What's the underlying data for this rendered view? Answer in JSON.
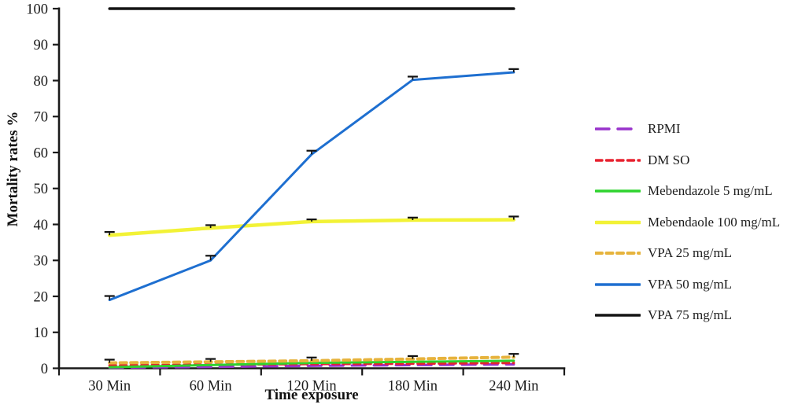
{
  "chart_data": {
    "type": "line",
    "title": "",
    "xlabel": "Time exposure",
    "ylabel": "Mortality rates %",
    "categories": [
      "30 Min",
      "60 Min",
      "120 Min",
      "180 Min",
      "240 Min"
    ],
    "ylim": [
      0,
      100
    ],
    "yticks": [
      0,
      10,
      20,
      30,
      40,
      50,
      60,
      70,
      80,
      90,
      100
    ],
    "grid": false,
    "legend_position": "right",
    "axis_color": "#1a1a1a",
    "error_bar_color": "#111111",
    "series": [
      {
        "name": "RPMI",
        "color": "#9933cc",
        "style": "dashed-long",
        "width": 3.2,
        "values": [
          0.2,
          0.4,
          0.7,
          0.9,
          1.1
        ]
      },
      {
        "name": "DM SO",
        "color": "#e8212f",
        "style": "dashed",
        "width": 3.2,
        "values": [
          0.8,
          1.0,
          1.2,
          1.3,
          1.5
        ]
      },
      {
        "name": "Mebendazole 5 mg/mL",
        "color": "#2ed32e",
        "style": "solid",
        "width": 3.0,
        "values": [
          0.3,
          0.9,
          1.5,
          1.8,
          2.1
        ]
      },
      {
        "name": "Mebendaole 100 mg/mL",
        "color": "#f2f236",
        "style": "solid",
        "width": 4.5,
        "values": [
          37,
          39,
          40.8,
          41.2,
          41.3
        ],
        "errors": [
          0.9,
          0.8,
          0.6,
          0.7,
          0.9
        ]
      },
      {
        "name": "VPA 25 mg/mL",
        "color": "#e6b33c",
        "style": "dashed",
        "width": 4.0,
        "values": [
          1.5,
          1.8,
          2.1,
          2.6,
          3.1
        ],
        "errors": [
          0.9,
          0.8,
          0.9,
          0.8,
          0.9
        ]
      },
      {
        "name": "VPA 50 mg/mL",
        "color": "#1e6fd0",
        "style": "solid",
        "width": 3.0,
        "values": [
          19,
          30,
          59.5,
          80.2,
          82.3
        ],
        "errors": [
          1.1,
          1.3,
          1.0,
          0.9,
          0.9
        ]
      },
      {
        "name": "VPA 75 mg/mL",
        "color": "#141414",
        "style": "solid",
        "width": 3.5,
        "values": [
          100,
          100,
          100,
          100,
          100
        ]
      }
    ]
  }
}
